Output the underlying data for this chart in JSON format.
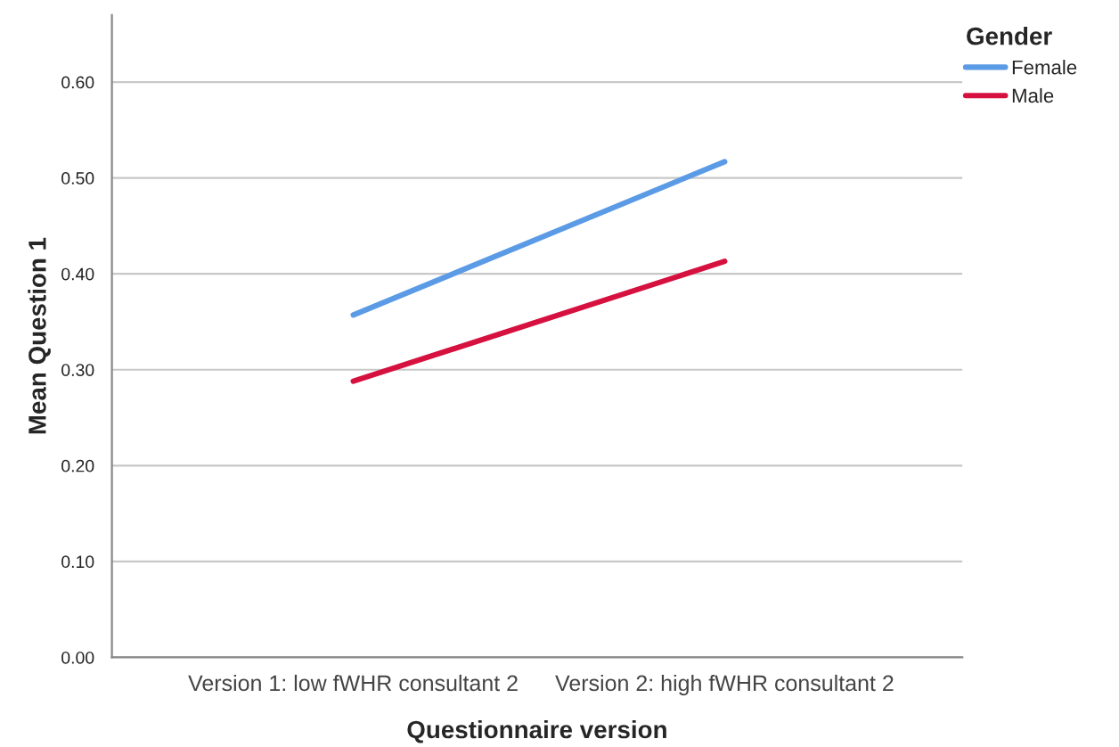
{
  "chart_data": {
    "type": "line",
    "xlabel": "Questionnaire version",
    "ylabel": "Mean Question 1",
    "categories": [
      "Version 1: low fWHR consultant 2",
      "Version 2: high fWHR consultant 2"
    ],
    "series": [
      {
        "name": "Female",
        "color": "#5b9be6",
        "values": [
          0.357,
          0.517
        ]
      },
      {
        "name": "Male",
        "color": "#d6113f",
        "values": [
          0.288,
          0.413
        ]
      }
    ],
    "ylim": [
      0,
      0.67
    ],
    "yticks": [
      {
        "value": 0,
        "label": "0.00"
      },
      {
        "value": 0.1,
        "label": "0.10"
      },
      {
        "value": 0.2,
        "label": "0.20"
      },
      {
        "value": 0.3,
        "label": "0.30"
      },
      {
        "value": 0.4,
        "label": "0.40"
      },
      {
        "value": 0.5,
        "label": "0.50"
      },
      {
        "value": 0.6,
        "label": "0.60"
      }
    ],
    "grid": "y",
    "legend": "top right",
    "legend_title": "Gender",
    "marker": "none",
    "line_style": "solid"
  }
}
